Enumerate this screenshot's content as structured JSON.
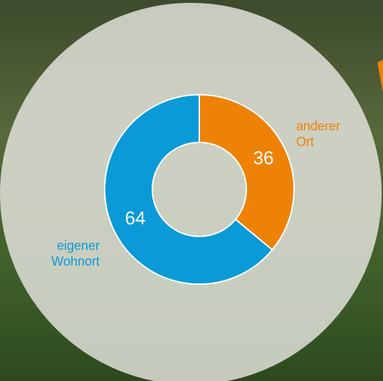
{
  "chart_data": {
    "type": "donut",
    "categories": [
      "anderer Ort",
      "eigener Wohnort"
    ],
    "values": [
      36,
      64
    ],
    "colors": [
      "#ee8207",
      "#0a9ad7"
    ]
  }
}
